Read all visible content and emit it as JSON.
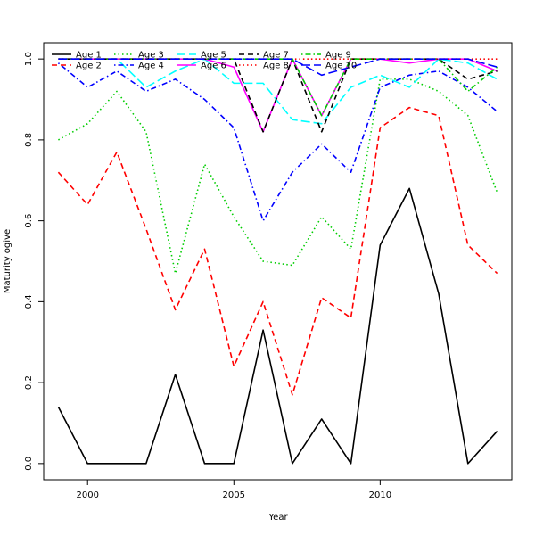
{
  "chart_data": {
    "type": "line",
    "xlabel": "Year",
    "ylabel": "Maturity ogive",
    "xlim": [
      1998.5,
      2014.5
    ],
    "ylim": [
      -0.04,
      1.04
    ],
    "x_ticks": [
      2000,
      2005,
      2010
    ],
    "y_ticks": [
      0.0,
      0.2,
      0.4,
      0.6,
      0.8,
      1.0
    ],
    "y_tick_labels": [
      "0.0",
      "0.2",
      "0.4",
      "0.6",
      "0.8",
      "1.0"
    ],
    "x": [
      1999,
      2000,
      2001,
      2002,
      2003,
      2004,
      2005,
      2006,
      2007,
      2008,
      2009,
      2010,
      2011,
      2012,
      2013,
      2014
    ],
    "legend_position": "top-left",
    "legend_columns": 5,
    "series": [
      {
        "name": "Age 1",
        "color": "#000000",
        "dash": "solid",
        "values": [
          0.14,
          0.0,
          0.0,
          0.0,
          0.22,
          0.0,
          0.0,
          0.33,
          0.0,
          0.11,
          0.0,
          0.54,
          0.68,
          0.42,
          0.0,
          0.08
        ]
      },
      {
        "name": "Age 2",
        "color": "#ff0000",
        "dash": "dashed",
        "values": [
          0.72,
          0.64,
          0.77,
          0.58,
          0.38,
          0.53,
          0.24,
          0.4,
          0.17,
          0.41,
          0.36,
          0.83,
          0.88,
          0.86,
          0.54,
          0.47
        ]
      },
      {
        "name": "Age 3",
        "color": "#00cd00",
        "dash": "dotted",
        "values": [
          0.8,
          0.84,
          0.92,
          0.82,
          0.47,
          0.74,
          0.61,
          0.5,
          0.49,
          0.61,
          0.53,
          0.95,
          0.95,
          0.92,
          0.86,
          0.67
        ]
      },
      {
        "name": "Age 4",
        "color": "#0000ff",
        "dash": "dotdash",
        "values": [
          0.99,
          0.93,
          0.97,
          0.92,
          0.95,
          0.9,
          0.83,
          0.6,
          0.72,
          0.79,
          0.72,
          0.93,
          0.96,
          0.97,
          0.93,
          0.87
        ]
      },
      {
        "name": "Age 5",
        "color": "#00ffff",
        "dash": "longdash",
        "values": [
          1.0,
          1.0,
          1.0,
          0.93,
          0.97,
          1.0,
          0.94,
          0.94,
          0.85,
          0.84,
          0.93,
          0.96,
          0.93,
          1.0,
          0.99,
          0.95
        ]
      },
      {
        "name": "Age 6",
        "color": "#ff00ff",
        "dash": "solid",
        "values": [
          1.0,
          1.0,
          1.0,
          1.0,
          1.0,
          1.0,
          0.98,
          0.82,
          1.0,
          0.86,
          1.0,
          1.0,
          0.99,
          1.0,
          1.0,
          0.97
        ]
      },
      {
        "name": "Age 7",
        "color": "#000000",
        "dash": "dashed",
        "values": [
          1.0,
          1.0,
          1.0,
          1.0,
          1.0,
          1.0,
          1.0,
          0.82,
          1.0,
          0.82,
          1.0,
          1.0,
          1.0,
          1.0,
          0.95,
          0.97
        ]
      },
      {
        "name": "Age 8",
        "color": "#ff0000",
        "dash": "dotted",
        "values": [
          1.0,
          1.0,
          1.0,
          1.0,
          1.0,
          1.0,
          1.0,
          1.0,
          1.0,
          1.0,
          1.0,
          1.0,
          1.0,
          1.0,
          1.0,
          1.0
        ]
      },
      {
        "name": "Age 9",
        "color": "#00cd00",
        "dash": "dotdash",
        "values": [
          1.0,
          1.0,
          1.0,
          1.0,
          1.0,
          1.0,
          1.0,
          1.0,
          1.0,
          0.86,
          1.0,
          1.0,
          1.0,
          1.0,
          0.92,
          0.98
        ]
      },
      {
        "name": "Age 10",
        "color": "#0000ff",
        "dash": "longdash",
        "values": [
          1.0,
          1.0,
          1.0,
          1.0,
          1.0,
          1.0,
          1.0,
          1.0,
          1.0,
          0.96,
          0.98,
          1.0,
          1.0,
          1.0,
          1.0,
          0.98
        ]
      }
    ]
  }
}
